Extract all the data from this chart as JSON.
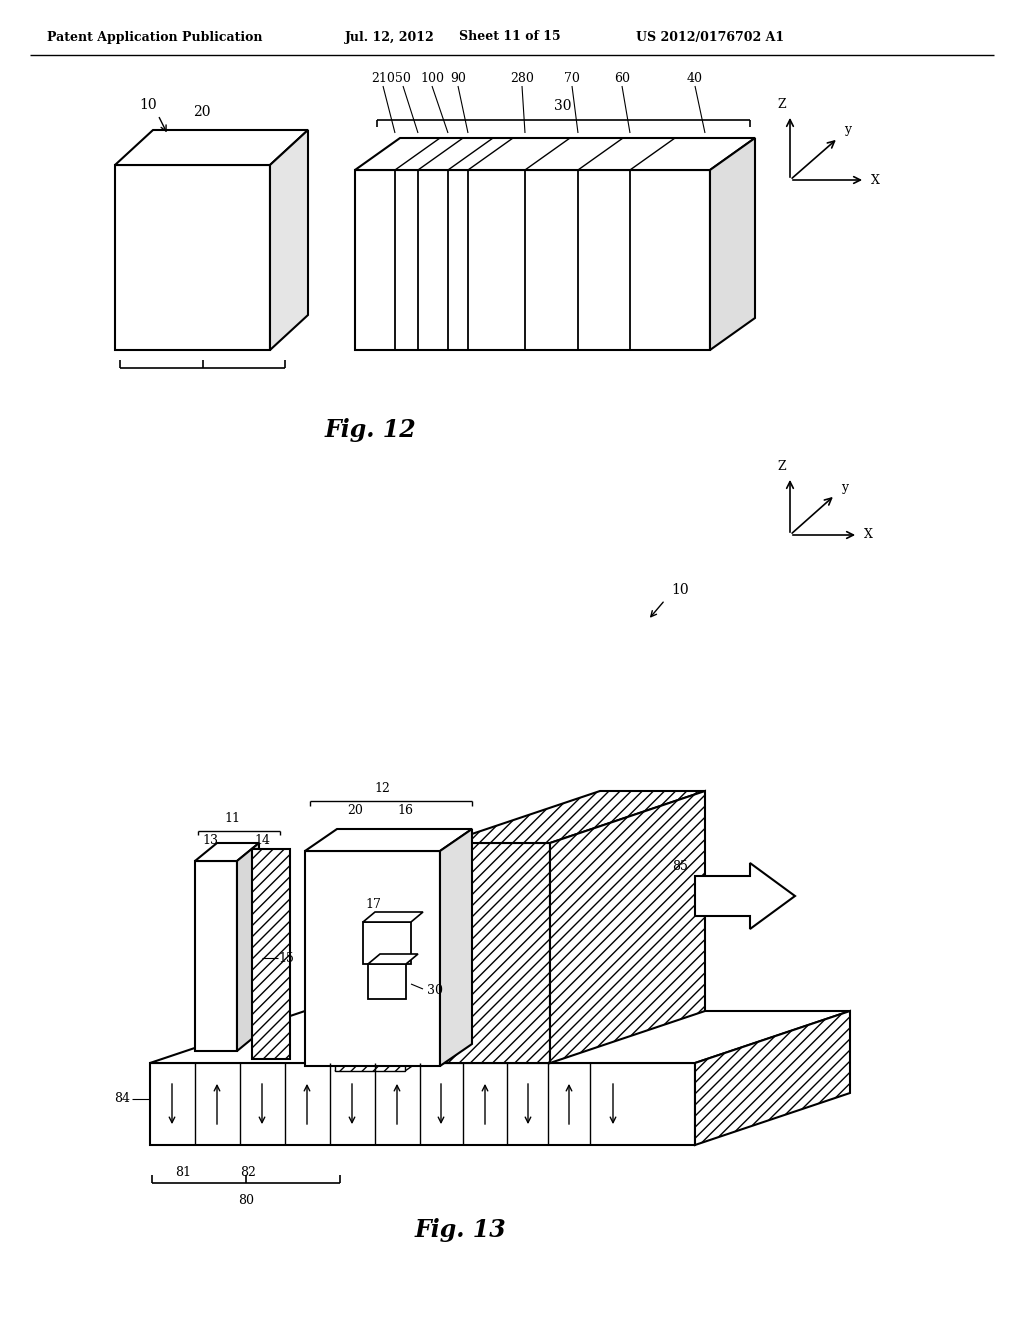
{
  "bg_color": "#ffffff",
  "header_text": "Patent Application Publication",
  "header_date": "Jul. 12, 2012",
  "header_sheet": "Sheet 11 of 15",
  "header_patent": "US 2012/0176702 A1",
  "fig12_title": "Fig. 12",
  "fig13_title": "Fig. 13",
  "line_color": "#000000"
}
